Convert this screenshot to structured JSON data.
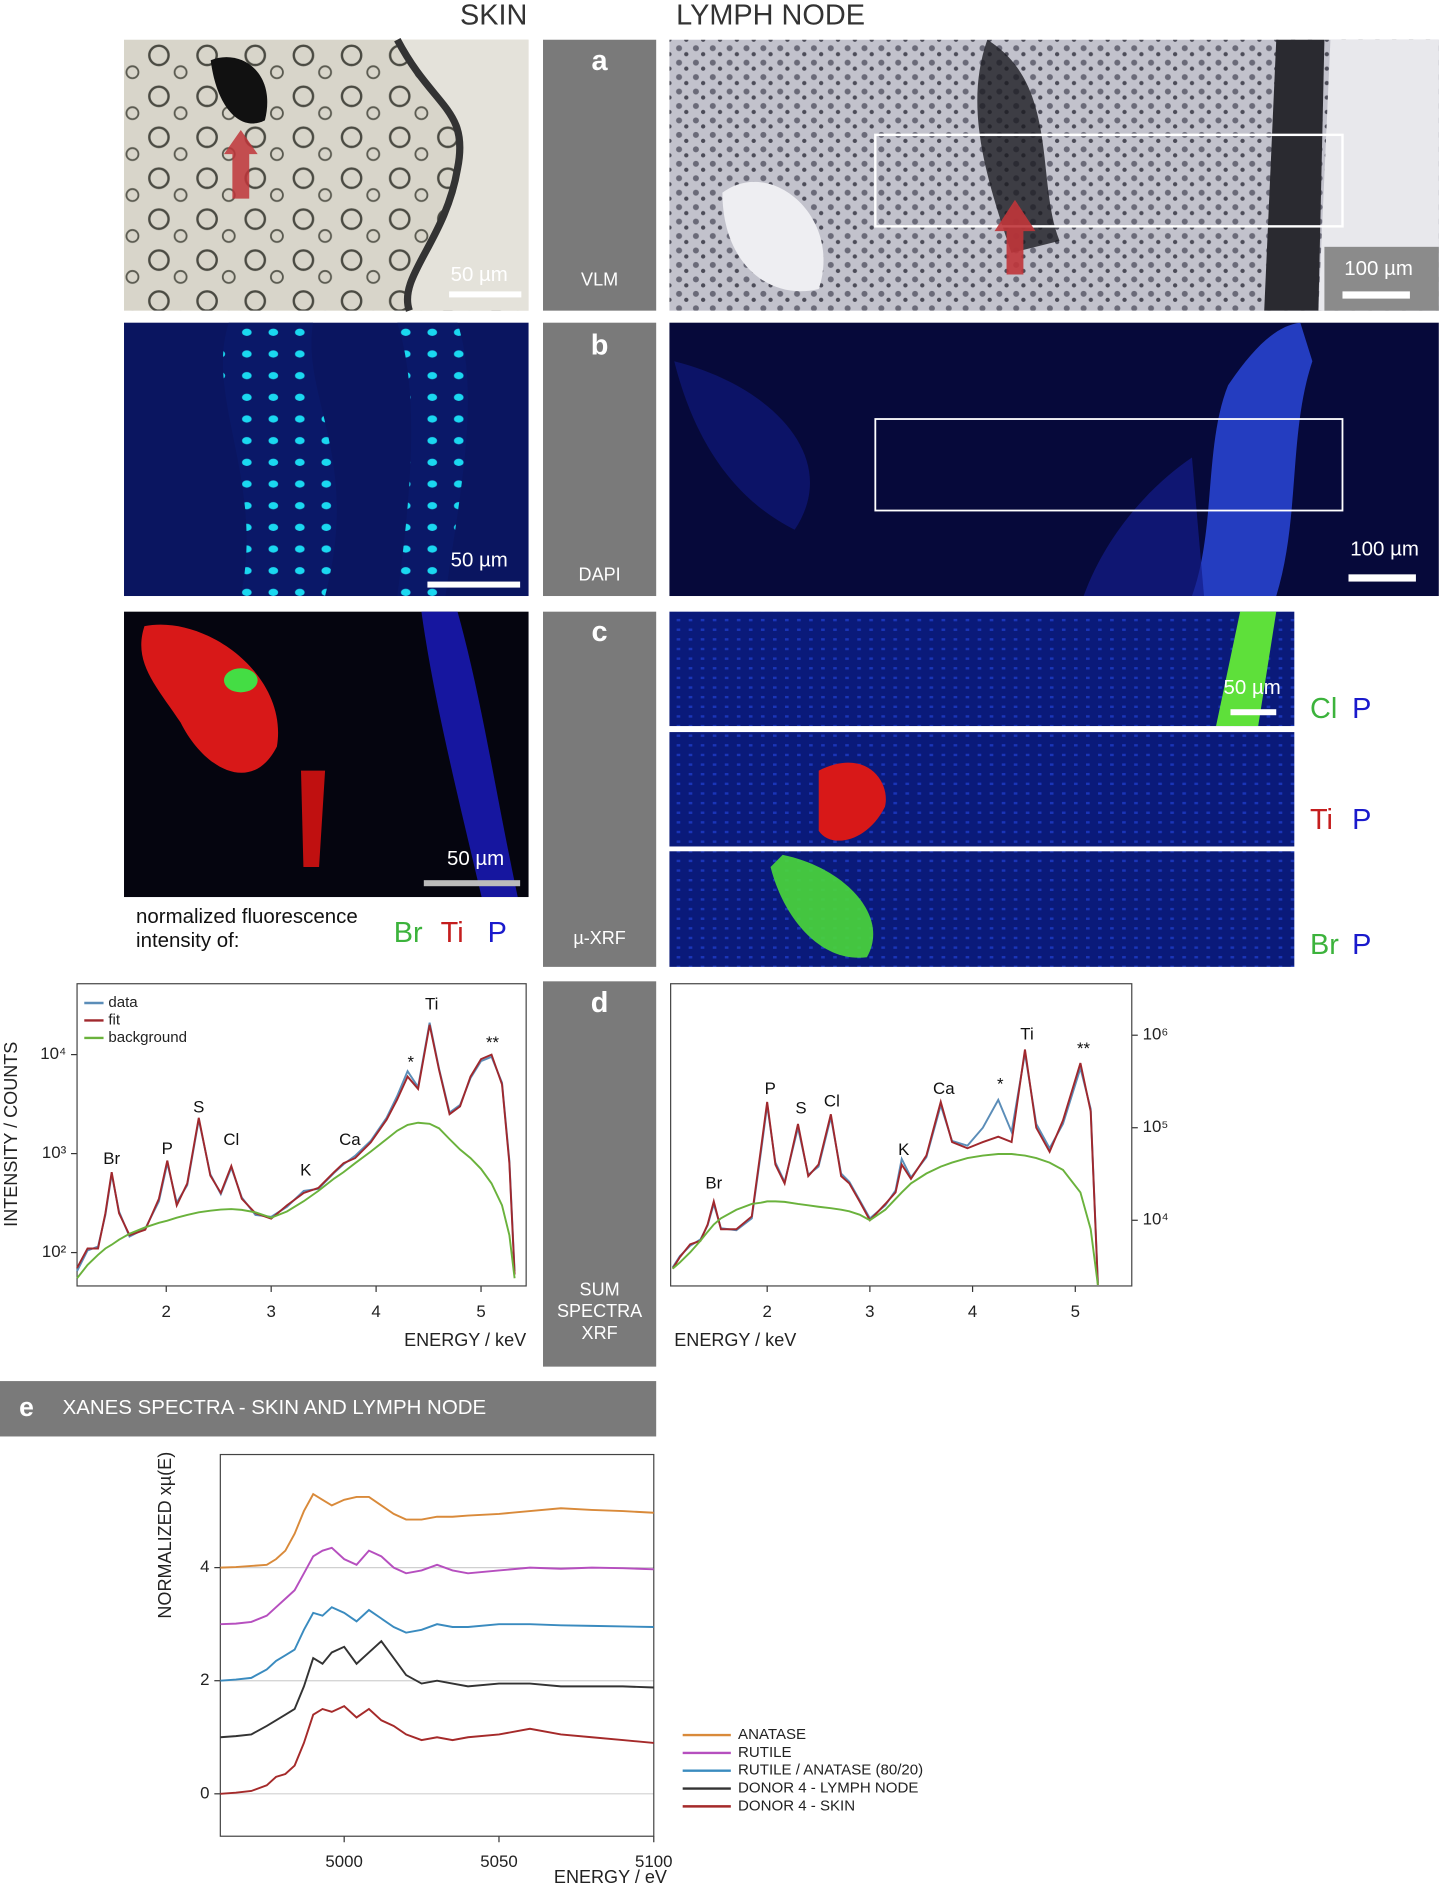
{
  "headers": {
    "skin": "SKIN",
    "lymph_node": "LYMPH NODE"
  },
  "rows": [
    {
      "label": "a",
      "method": "VLM",
      "skin_scale": "50 µm",
      "lymph_scale": "100 µm"
    },
    {
      "label": "b",
      "method": "DAPI",
      "skin_scale": "50 µm",
      "lymph_scale": "100 µm"
    },
    {
      "label": "c",
      "method": "µ-XRF",
      "skin_scale": "50 µm",
      "lymph_scale": "50 µm"
    },
    {
      "label": "d",
      "method": [
        "SUM",
        "SPECTRA",
        "XRF"
      ]
    }
  ],
  "xrf_legend": {
    "caption": [
      "normalized fluorescence",
      "intensity of:"
    ],
    "elements": [
      {
        "name": "Br",
        "color": "#3cb33c"
      },
      {
        "name": "Ti",
        "color": "#c41e1e"
      },
      {
        "name": "P",
        "color": "#1a1acc"
      }
    ]
  },
  "xrf_maps": [
    {
      "elements": [
        {
          "name": "Cl",
          "color": "#3cb33c"
        },
        {
          "name": "P",
          "color": "#1a1acc"
        }
      ]
    },
    {
      "elements": [
        {
          "name": "Ti",
          "color": "#c41e1e"
        },
        {
          "name": "P",
          "color": "#1a1acc"
        }
      ]
    },
    {
      "elements": [
        {
          "name": "Br",
          "color": "#3cb33c"
        },
        {
          "name": "P",
          "color": "#1a1acc"
        }
      ]
    }
  ],
  "panel_e": {
    "label": "e",
    "title": "XANES SPECTRA - SKIN AND LYMPH NODE"
  },
  "chart_data": [
    {
      "type": "line",
      "log_y": true,
      "ylabel": "INTENSITY / COUNTS",
      "xlabel": "ENERGY / keV",
      "xlim": [
        1.15,
        5.43
      ],
      "xticks": [
        2,
        3,
        4,
        5
      ],
      "ylim": [
        46,
        52000
      ],
      "yticks": [
        {
          "value": 100,
          "label": "10²"
        },
        {
          "value": 1000,
          "label": "10³"
        },
        {
          "value": 10000,
          "label": "10⁴"
        }
      ],
      "y_axis_side": "left",
      "grid": false,
      "legend": "upper left",
      "x": [
        1.15,
        1.25,
        1.35,
        1.42,
        1.48,
        1.55,
        1.65,
        1.8,
        1.93,
        2.01,
        2.1,
        2.2,
        2.31,
        2.42,
        2.52,
        2.62,
        2.72,
        2.85,
        3.0,
        3.15,
        3.31,
        3.45,
        3.6,
        3.69,
        3.8,
        3.95,
        4.1,
        4.2,
        4.3,
        4.4,
        4.51,
        4.6,
        4.7,
        4.8,
        4.9,
        5.0,
        5.1,
        5.2,
        5.27,
        5.32
      ],
      "series": [
        {
          "name": "data",
          "color": "#5b8db8",
          "values": [
            65,
            105,
            115,
            240,
            620,
            260,
            145,
            175,
            330,
            800,
            320,
            480,
            2200,
            620,
            390,
            720,
            360,
            240,
            230,
            290,
            420,
            440,
            640,
            780,
            950,
            1350,
            2300,
            3800,
            6800,
            4700,
            21000,
            7200,
            2600,
            3100,
            5800,
            8600,
            9500,
            5200,
            850,
            65
          ]
        },
        {
          "name": "fit",
          "color": "#a0282d",
          "values": [
            70,
            110,
            110,
            250,
            650,
            250,
            150,
            170,
            350,
            850,
            300,
            500,
            2300,
            600,
            400,
            750,
            350,
            250,
            220,
            300,
            400,
            450,
            650,
            800,
            900,
            1300,
            2200,
            3500,
            6000,
            4500,
            20000,
            7000,
            2500,
            3000,
            6000,
            9000,
            10000,
            5000,
            800,
            60
          ]
        },
        {
          "name": "background",
          "color": "#6ab23c",
          "values": [
            55,
            75,
            95,
            110,
            120,
            135,
            155,
            180,
            200,
            210,
            225,
            240,
            255,
            265,
            272,
            275,
            270,
            255,
            225,
            260,
            330,
            420,
            560,
            650,
            800,
            1050,
            1400,
            1700,
            1950,
            2050,
            2000,
            1800,
            1400,
            1100,
            900,
            700,
            500,
            300,
            150,
            55
          ]
        }
      ],
      "annotations": [
        {
          "text": "Br",
          "x": 1.48,
          "y": 870
        },
        {
          "text": "P",
          "x": 2.01,
          "y": 1100
        },
        {
          "text": "S",
          "x": 2.31,
          "y": 2900
        },
        {
          "text": "Cl",
          "x": 2.62,
          "y": 1350
        },
        {
          "text": "K",
          "x": 3.33,
          "y": 670
        },
        {
          "text": "Ca",
          "x": 3.75,
          "y": 1350
        },
        {
          "text": "*",
          "x": 4.33,
          "y": 8200
        },
        {
          "text": "Ti",
          "x": 4.53,
          "y": 31600
        },
        {
          "text": "**",
          "x": 5.11,
          "y": 13000
        }
      ]
    },
    {
      "type": "line",
      "log_y": true,
      "xlabel": "ENERGY / keV",
      "xlim": [
        1.06,
        5.55
      ],
      "xticks": [
        2,
        3,
        4,
        5
      ],
      "ylim": [
        1950,
        3600000
      ],
      "yticks": [
        {
          "value": 10000,
          "label": "10⁴"
        },
        {
          "value": 100000,
          "label": "10⁵"
        },
        {
          "value": 1000000,
          "label": "10⁶"
        }
      ],
      "y_axis_side": "right",
      "grid": false,
      "x": [
        1.08,
        1.15,
        1.25,
        1.35,
        1.42,
        1.48,
        1.55,
        1.7,
        1.85,
        1.94,
        2.0,
        2.08,
        2.17,
        2.3,
        2.4,
        2.5,
        2.62,
        2.72,
        2.8,
        2.9,
        3.0,
        3.15,
        3.25,
        3.31,
        3.4,
        3.55,
        3.69,
        3.8,
        3.95,
        4.1,
        4.25,
        4.38,
        4.51,
        4.62,
        4.75,
        4.88,
        5.05,
        5.15,
        5.22
      ],
      "series": [
        {
          "color": "#5b8db8",
          "values": [
            3100,
            4100,
            5300,
            6200,
            8800,
            15000,
            8200,
            7800,
            10500,
            55000,
            175000,
            42000,
            26000,
            100000,
            31000,
            38000,
            130000,
            32000,
            26000,
            16500,
            10500,
            14500,
            21000,
            46000,
            29000,
            48000,
            175000,
            72000,
            64000,
            100000,
            200000,
            90000,
            640000,
            110000,
            60000,
            110000,
            440000,
            160000,
            2100
          ]
        },
        {
          "color": "#a0282d",
          "values": [
            3000,
            4000,
            5500,
            6000,
            9000,
            16000,
            8000,
            8000,
            11000,
            60000,
            190000,
            40000,
            25000,
            110000,
            30000,
            40000,
            140000,
            30000,
            25000,
            16000,
            10000,
            15000,
            20000,
            40000,
            28000,
            50000,
            190000,
            70000,
            60000,
            70000,
            80000,
            70000,
            700000,
            100000,
            55000,
            120000,
            500000,
            150000,
            2000
          ]
        },
        {
          "color": "#6ab23c",
          "values": [
            3000,
            3500,
            4500,
            6000,
            7500,
            9000,
            10500,
            13000,
            15000,
            15500,
            16000,
            16000,
            15800,
            15000,
            14500,
            14000,
            13500,
            13000,
            12500,
            11500,
            10000,
            13000,
            17000,
            20000,
            25000,
            32000,
            38000,
            42000,
            47000,
            50000,
            52000,
            52000,
            50000,
            47000,
            42000,
            35000,
            20000,
            8000,
            2000
          ]
        }
      ],
      "annotations": [
        {
          "text": "Br",
          "x": 1.48,
          "y": 24500
        },
        {
          "text": "P",
          "x": 2.03,
          "y": 260000
        },
        {
          "text": "S",
          "x": 2.33,
          "y": 160000
        },
        {
          "text": "Cl",
          "x": 2.63,
          "y": 190000
        },
        {
          "text": "K",
          "x": 3.33,
          "y": 57000
        },
        {
          "text": "Ca",
          "x": 3.72,
          "y": 260000
        },
        {
          "text": "*",
          "x": 4.27,
          "y": 290000
        },
        {
          "text": "Ti",
          "x": 4.53,
          "y": 1000000
        },
        {
          "text": "**",
          "x": 5.08,
          "y": 700000
        }
      ]
    },
    {
      "type": "line",
      "log_y": false,
      "ylabel": "NORMALIZED xµ(E)",
      "xlabel": "ENERGY / eV",
      "xlim": [
        4960,
        5100
      ],
      "xticks": [
        5000,
        5050,
        5100
      ],
      "ylim": [
        -0.75,
        6
      ],
      "yticks": [
        0,
        2,
        4
      ],
      "y_axis_side": "left",
      "grid": true,
      "legend": "right",
      "x": [
        4960,
        4965,
        4970,
        4975,
        4978,
        4981,
        4984,
        4987,
        4990,
        4993,
        4996,
        5000,
        5004,
        5008,
        5012,
        5016,
        5020,
        5025,
        5030,
        5035,
        5040,
        5050,
        5060,
        5070,
        5080,
        5090,
        5100
      ],
      "series": [
        {
          "name": "ANATASE",
          "color": "#d98a3a",
          "values": [
            4,
            4.01,
            4.03,
            4.05,
            4.15,
            4.3,
            4.6,
            5.0,
            5.3,
            5.2,
            5.1,
            5.2,
            5.25,
            5.25,
            5.1,
            4.95,
            4.85,
            4.85,
            4.9,
            4.9,
            4.92,
            4.95,
            5.0,
            5.05,
            5.02,
            5.0,
            4.97
          ]
        },
        {
          "name": "RUTILE",
          "color": "#b64fbf",
          "values": [
            3,
            3.01,
            3.04,
            3.15,
            3.3,
            3.45,
            3.6,
            3.9,
            4.2,
            4.3,
            4.35,
            4.15,
            4.05,
            4.3,
            4.2,
            4.0,
            3.9,
            3.95,
            4.05,
            3.95,
            3.9,
            3.95,
            4.0,
            3.98,
            4.0,
            3.99,
            3.97
          ]
        },
        {
          "name": "RUTILE / ANATASE (80/20)",
          "color": "#3a8bbf",
          "values": [
            2,
            2.02,
            2.05,
            2.2,
            2.35,
            2.45,
            2.55,
            2.9,
            3.2,
            3.15,
            3.3,
            3.2,
            3.05,
            3.25,
            3.1,
            2.95,
            2.85,
            2.9,
            3.0,
            2.95,
            2.95,
            3.0,
            3.0,
            2.98,
            2.97,
            2.96,
            2.95
          ]
        },
        {
          "name": "DONOR 4 - LYMPH NODE",
          "color": "#333333",
          "values": [
            1,
            1.02,
            1.05,
            1.2,
            1.3,
            1.4,
            1.5,
            1.9,
            2.4,
            2.3,
            2.5,
            2.6,
            2.3,
            2.5,
            2.7,
            2.4,
            2.1,
            1.95,
            2.0,
            1.95,
            1.9,
            1.95,
            1.95,
            1.9,
            1.9,
            1.9,
            1.88
          ]
        },
        {
          "name": "DONOR 4 - SKIN",
          "color": "#a52a2a",
          "values": [
            0,
            0.02,
            0.05,
            0.15,
            0.3,
            0.35,
            0.5,
            0.9,
            1.4,
            1.5,
            1.45,
            1.55,
            1.35,
            1.5,
            1.3,
            1.2,
            1.05,
            0.95,
            1.0,
            0.95,
            1.0,
            1.05,
            1.15,
            1.05,
            1.0,
            0.95,
            0.9
          ]
        }
      ]
    }
  ]
}
